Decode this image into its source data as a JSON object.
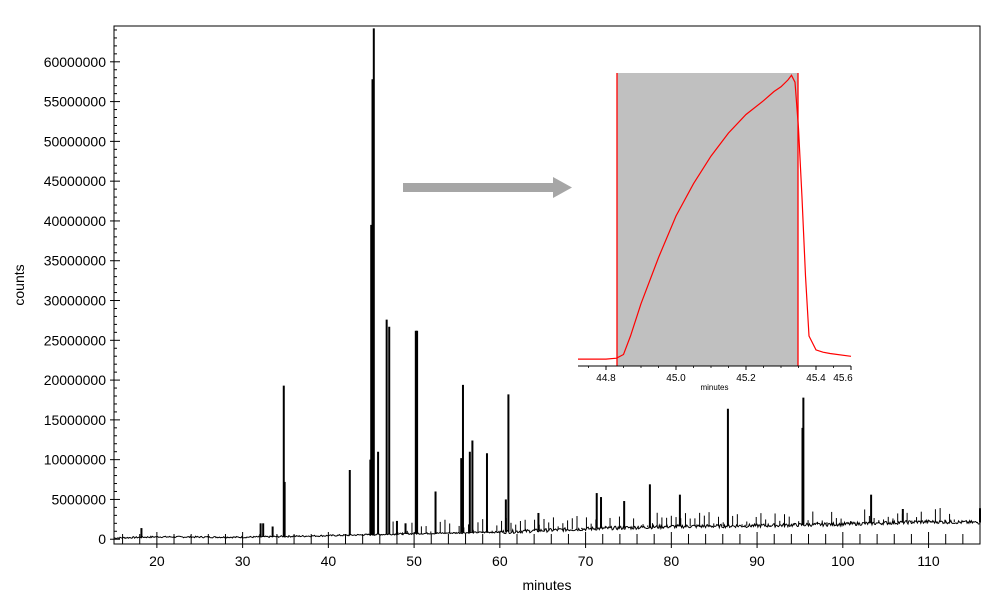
{
  "chart_data": [
    {
      "type": "line",
      "xlabel": "minutes",
      "ylabel": "counts",
      "xlim": [
        15,
        116
      ],
      "ylim": [
        -600000,
        64500000
      ],
      "x_ticks": [
        20,
        30,
        40,
        50,
        60,
        70,
        80,
        90,
        100,
        110
      ],
      "y_ticks": [
        0,
        5000000,
        10000000,
        15000000,
        20000000,
        25000000,
        30000000,
        35000000,
        40000000,
        45000000,
        50000000,
        55000000,
        60000000
      ],
      "grid": false,
      "series": [
        {
          "color": "#000000",
          "baseline": [
            [
              15,
              150000
            ],
            [
              20,
              300000
            ],
            [
              30,
              250000
            ],
            [
              40,
              450000
            ],
            [
              50,
              700000
            ],
            [
              60,
              900000
            ],
            [
              70,
              1300000
            ],
            [
              80,
              1600000
            ],
            [
              90,
              1700000
            ],
            [
              100,
              1900000
            ],
            [
              110,
              2200000
            ],
            [
              116,
              2100000
            ]
          ],
          "peaks": [
            [
              18.2,
              1400000
            ],
            [
              32.1,
              2000000
            ],
            [
              32.4,
              2000000
            ],
            [
              33.5,
              1600000
            ],
            [
              34.8,
              19300000
            ],
            [
              34.9,
              7200000
            ],
            [
              42.5,
              8700000
            ],
            [
              44.9,
              10000000
            ],
            [
              45.0,
              39500000
            ],
            [
              45.15,
              57800000
            ],
            [
              45.3,
              64200000
            ],
            [
              45.8,
              11000000
            ],
            [
              46.8,
              27600000
            ],
            [
              47.1,
              26700000
            ],
            [
              48.0,
              2300000
            ],
            [
              49.0,
              2000000
            ],
            [
              50.2,
              26200000
            ],
            [
              50.35,
              26200000
            ],
            [
              52.5,
              6000000
            ],
            [
              55.5,
              10200000
            ],
            [
              55.7,
              19400000
            ],
            [
              56.5,
              11000000
            ],
            [
              56.8,
              12400000
            ],
            [
              58.5,
              10800000
            ],
            [
              60.7,
              5000000
            ],
            [
              61.0,
              18200000
            ],
            [
              64.5,
              3300000
            ],
            [
              71.3,
              5800000
            ],
            [
              71.8,
              5300000
            ],
            [
              74.5,
              4800000
            ],
            [
              77.5,
              6900000
            ],
            [
              81.0,
              5600000
            ],
            [
              86.6,
              16400000
            ],
            [
              95.3,
              14000000
            ],
            [
              95.4,
              17800000
            ],
            [
              99.0,
              1900000
            ],
            [
              103.3,
              5600000
            ],
            [
              107.0,
              3800000
            ],
            [
              116,
              3900000
            ]
          ]
        }
      ]
    },
    {
      "type": "area",
      "xlabel": "minutes",
      "xlim": [
        44.72,
        45.5
      ],
      "ylim": [
        -1500000,
        62000000
      ],
      "x_ticks": [
        "44.8",
        "45.0",
        "45.2",
        "45.4",
        "45.6"
      ],
      "shaded_range": [
        44.84,
        45.44
      ],
      "series": [
        {
          "color": "#ff0000",
          "fill": "#c0c0c0",
          "x": [
            44.72,
            44.8,
            44.83,
            44.85,
            44.87,
            44.9,
            44.95,
            45.0,
            45.05,
            45.1,
            45.15,
            45.2,
            45.25,
            45.28,
            45.3,
            45.32,
            45.33,
            45.34,
            45.35,
            45.36,
            45.37,
            45.38,
            45.4,
            45.42,
            45.44,
            45.5
          ],
          "y": [
            0,
            0,
            200000,
            1000000,
            5000000,
            12000000,
            22000000,
            31000000,
            38000000,
            44000000,
            49000000,
            53000000,
            56000000,
            58000000,
            59000000,
            60500000,
            61500000,
            60000000,
            50000000,
            35000000,
            18000000,
            5000000,
            2000000,
            1500000,
            1200000,
            600000
          ]
        }
      ]
    }
  ]
}
